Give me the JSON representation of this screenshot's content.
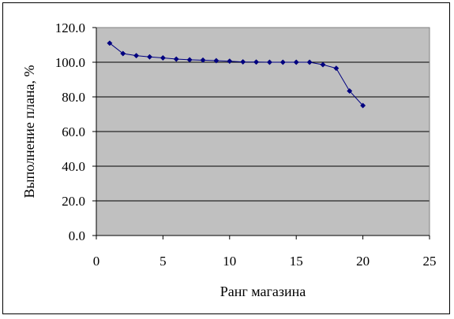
{
  "chart_data": {
    "type": "line",
    "title": "",
    "xlabel": "Ранг магазина",
    "ylabel": "Выполнение плана, %",
    "xlim": [
      0,
      25
    ],
    "ylim": [
      0,
      120
    ],
    "x_ticks": [
      0,
      5,
      10,
      15,
      20,
      25
    ],
    "y_ticks": [
      "0.0",
      "20.0",
      "40.0",
      "60.0",
      "80.0",
      "100.0",
      "120.0"
    ],
    "grid": "horizontal",
    "legend": "none",
    "plot_background": "#c0c0c0",
    "series_color": "#000080",
    "marker": "diamond",
    "series": [
      {
        "x": [
          1,
          2,
          3,
          4,
          5,
          6,
          7,
          8,
          9,
          10,
          11,
          12,
          13,
          14,
          15,
          16,
          17,
          18,
          19,
          20
        ],
        "values": [
          111,
          105,
          103.8,
          103.1,
          102.5,
          101.8,
          101.4,
          101.2,
          100.9,
          100.6,
          100.2,
          100.1,
          100,
          100,
          100,
          100,
          98.6,
          96.5,
          83.4,
          75
        ]
      }
    ]
  }
}
